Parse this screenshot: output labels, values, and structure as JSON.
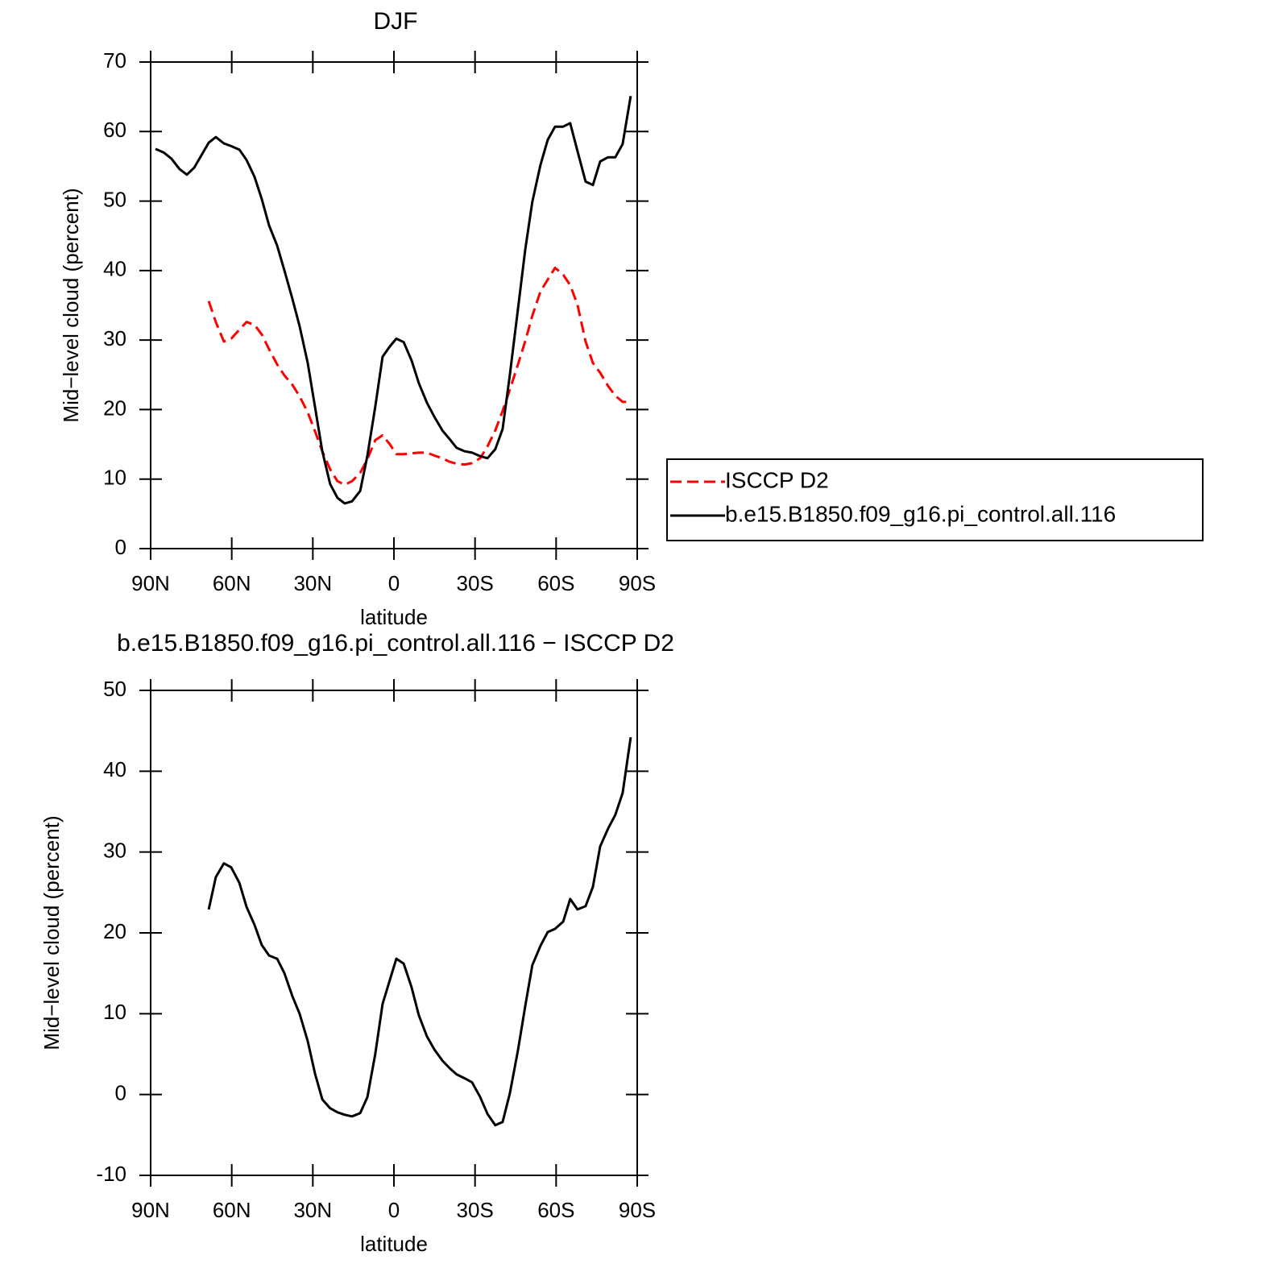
{
  "chart_data": [
    {
      "type": "line",
      "title": "DJF",
      "xlabel": "latitude",
      "ylabel": "Mid−level cloud (percent)",
      "x": [
        88.2,
        85.2,
        82.3,
        79.3,
        76.6,
        73.9,
        71.2,
        68.5,
        65.9,
        62.9,
        60.2,
        57.2,
        54.5,
        51.6,
        48.9,
        46.2,
        43.2,
        40.5,
        37.6,
        34.9,
        31.9,
        29.2,
        26.5,
        23.6,
        20.9,
        18.2,
        15.5,
        12.5,
        9.8,
        6.9,
        4.2,
        1.5,
        -0.9,
        -3.6,
        -6.5,
        -9.2,
        -12.2,
        -14.9,
        -17.9,
        -20.5,
        -23.2,
        -26.2,
        -28.9,
        -31.9,
        -34.6,
        -37.5,
        -40.2,
        -42.9,
        -45.9,
        -48.6,
        -51.2,
        -54.2,
        -56.9,
        -59.6,
        -62.6,
        -65.2,
        -67.9,
        -70.9,
        -73.6,
        -76.3,
        -79.2,
        -81.9,
        -84.6,
        -87.6
      ],
      "series": [
        {
          "name": "ISCCP D2",
          "color": "#ff0000",
          "linestyle": "dashed",
          "values": [
            null,
            null,
            null,
            null,
            null,
            null,
            null,
            35.6,
            32.6,
            29.8,
            30.2,
            31.5,
            32.6,
            32.2,
            30.8,
            28.7,
            26.5,
            24.9,
            23.6,
            21.9,
            19.6,
            16.9,
            14.0,
            11.4,
            9.7,
            9.2,
            9.7,
            10.9,
            12.9,
            15.6,
            16.3,
            15.0,
            13.6,
            13.6,
            13.7,
            13.8,
            13.8,
            13.4,
            13.0,
            12.5,
            12.2,
            12.1,
            12.3,
            13.0,
            14.7,
            17.0,
            19.8,
            22.9,
            26.5,
            29.9,
            33.5,
            37.0,
            38.7,
            40.4,
            39.4,
            37.9,
            35.1,
            29.8,
            26.7,
            25.3,
            23.4,
            22.0,
            21.1,
            21.1
          ]
        },
        {
          "name": "b.e15.B1850.f09_g16.pi_control.all.116",
          "color": "#000000",
          "linestyle": "solid",
          "values": [
            57.5,
            57.0,
            56.1,
            54.6,
            53.8,
            54.8,
            56.6,
            58.4,
            59.2,
            58.3,
            57.9,
            57.4,
            55.9,
            53.5,
            50.3,
            46.5,
            43.6,
            40.0,
            36.0,
            32.0,
            26.7,
            20.4,
            14.0,
            9.3,
            7.3,
            6.5,
            6.8,
            8.3,
            13.4,
            20.4,
            27.6,
            29.1,
            30.2,
            29.7,
            27.1,
            23.8,
            21.0,
            19.0,
            17.0,
            15.8,
            14.5,
            14.0,
            13.8,
            13.3,
            13.0,
            14.3,
            17.2,
            25.1,
            34.5,
            43.1,
            49.9,
            55.2,
            58.8,
            60.7,
            60.7,
            61.2,
            57.2,
            52.8,
            52.3,
            55.7,
            56.3,
            56.3,
            58.2,
            65.1
          ]
        }
      ],
      "xlim": [
        90,
        -90
      ],
      "xticks": [
        {
          "value": 90,
          "label": "90N"
        },
        {
          "value": 60,
          "label": "60N"
        },
        {
          "value": 30,
          "label": "30N"
        },
        0,
        {
          "value": -30,
          "label": "30S"
        },
        {
          "value": -60,
          "label": "60S"
        },
        {
          "value": -90,
          "label": "90S"
        }
      ],
      "ylim": [
        0,
        70
      ],
      "yticks": [
        0,
        10,
        20,
        30,
        40,
        50,
        60,
        70
      ],
      "legend": "right"
    },
    {
      "type": "line",
      "title": "b.e15.B1850.f09_g16.pi_control.all.116 − ISCCP D2",
      "xlabel": "latitude",
      "ylabel": "Mid−level cloud (percent)",
      "x": [
        88.2,
        85.2,
        82.3,
        79.3,
        76.6,
        73.9,
        71.2,
        68.5,
        65.9,
        62.9,
        60.2,
        57.2,
        54.5,
        51.6,
        48.9,
        46.2,
        43.2,
        40.5,
        37.6,
        34.9,
        31.9,
        29.2,
        26.5,
        23.6,
        20.9,
        18.2,
        15.5,
        12.5,
        9.8,
        6.9,
        4.2,
        1.5,
        -0.9,
        -3.6,
        -6.5,
        -9.2,
        -12.2,
        -14.9,
        -17.9,
        -20.5,
        -23.2,
        -26.2,
        -28.9,
        -31.9,
        -34.6,
        -37.5,
        -40.2,
        -42.9,
        -45.9,
        -48.6,
        -51.2,
        -54.2,
        -56.9,
        -59.6,
        -62.6,
        -65.2,
        -67.9,
        -70.9,
        -73.6,
        -76.3,
        -79.2,
        -81.9,
        -84.6,
        -87.6
      ],
      "series": [
        {
          "color": "#000000",
          "linestyle": "solid",
          "values": [
            null,
            null,
            null,
            null,
            null,
            null,
            null,
            22.9,
            26.9,
            28.6,
            28.1,
            26.2,
            23.2,
            21.0,
            18.5,
            17.2,
            16.8,
            15.0,
            12.2,
            10.0,
            6.6,
            2.6,
            -0.6,
            -1.7,
            -2.2,
            -2.5,
            -2.7,
            -2.3,
            -0.3,
            5.0,
            11.2,
            14.2,
            16.8,
            16.2,
            13.3,
            9.8,
            7.2,
            5.6,
            4.2,
            3.3,
            2.5,
            2.0,
            1.5,
            -0.3,
            -2.4,
            -3.8,
            -3.4,
            0.2,
            5.5,
            11.0,
            16.0,
            18.4,
            20.1,
            20.5,
            21.4,
            24.2,
            22.9,
            23.3,
            25.7,
            30.7,
            32.9,
            34.6,
            37.3,
            44.2
          ]
        }
      ],
      "xlim": [
        90,
        -90
      ],
      "xticks": [
        {
          "value": 90,
          "label": "90N"
        },
        {
          "value": 60,
          "label": "60N"
        },
        {
          "value": 30,
          "label": "30N"
        },
        0,
        {
          "value": -30,
          "label": "30S"
        },
        {
          "value": -60,
          "label": "60S"
        },
        {
          "value": -90,
          "label": "90S"
        }
      ],
      "ylim": [
        -10,
        50
      ],
      "yticks": [
        -10,
        0,
        10,
        20,
        30,
        40,
        50
      ]
    }
  ]
}
